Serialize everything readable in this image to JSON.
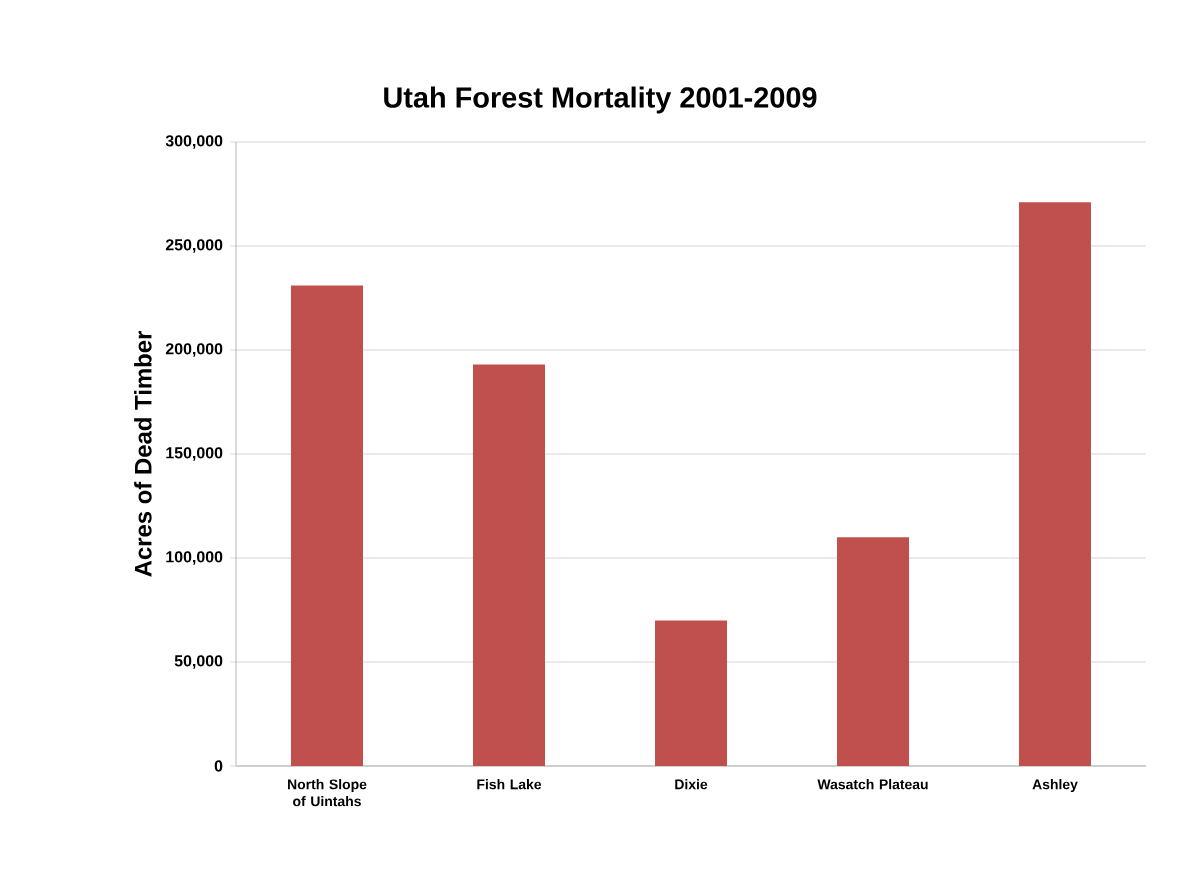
{
  "chart_data": {
    "type": "bar",
    "title": "Utah Forest Mortality 2001-2009",
    "ylabel": "Acres of Dead Timber",
    "categories": [
      "North Slope of Uintahs",
      "Fish Lake",
      "Dixie",
      "Wasatch Plateau",
      "Ashley"
    ],
    "values": [
      231000,
      193000,
      70000,
      110000,
      271000
    ],
    "color": "#c0504d",
    "ylim": [
      0,
      300000
    ],
    "yticks": [
      {
        "value": 0,
        "label": "0"
      },
      {
        "value": 50000,
        "label": "50,000"
      },
      {
        "value": 100000,
        "label": "100,000"
      },
      {
        "value": 150000,
        "label": "150,000"
      },
      {
        "value": 200000,
        "label": "200,000"
      },
      {
        "value": 250000,
        "label": "250,000"
      },
      {
        "value": 300000,
        "label": "300,000"
      }
    ],
    "grid": "y"
  }
}
